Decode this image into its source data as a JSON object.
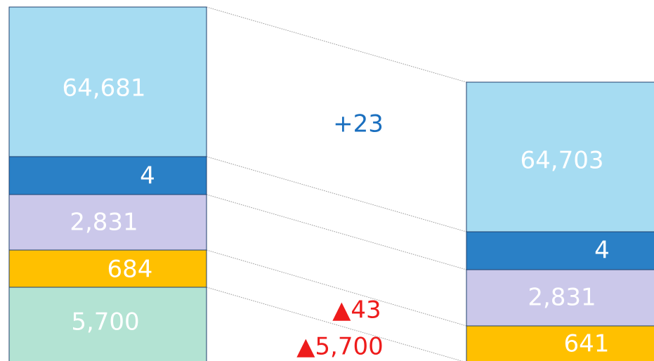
{
  "left_column": {
    "segments": [
      "64,681",
      "4",
      "2,831",
      "684",
      "5,700"
    ]
  },
  "right_column": {
    "segments": [
      "64,703",
      "4",
      "2,831",
      "641"
    ]
  },
  "differences": [
    "+23",
    "▲43",
    "▲5,700"
  ]
}
